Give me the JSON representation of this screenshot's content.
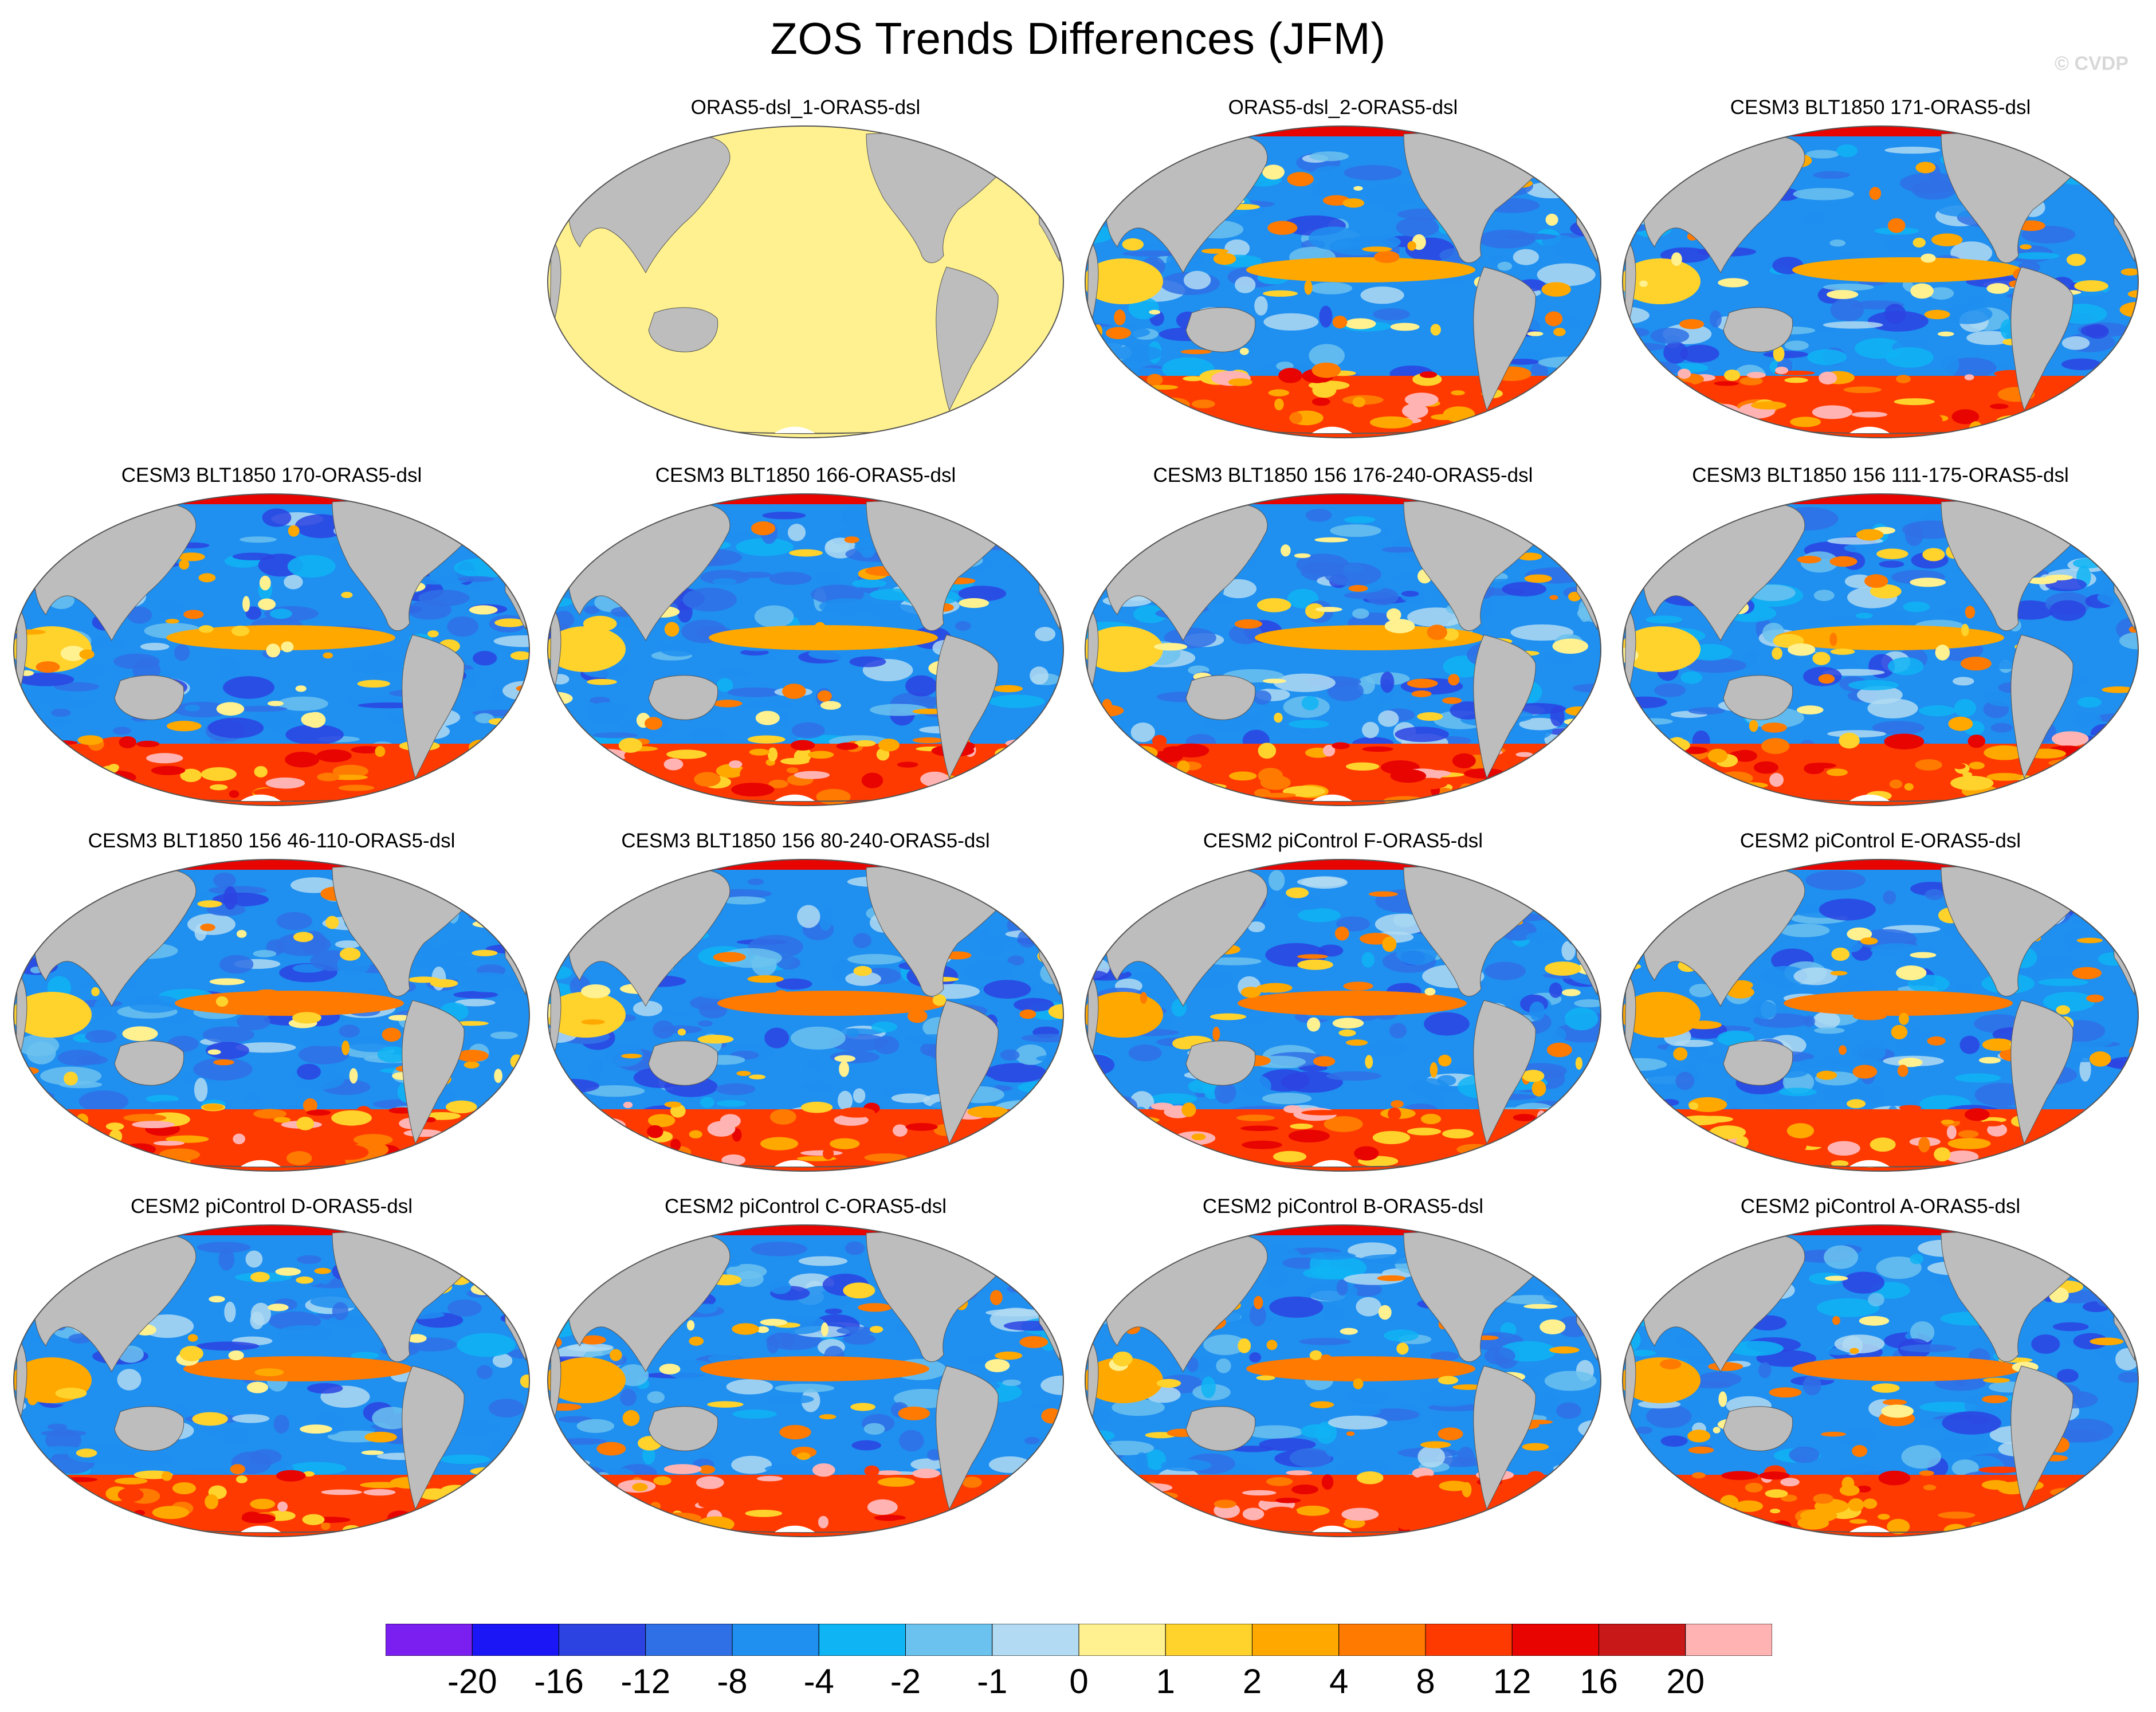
{
  "title": "ZOS Trends Differences (JFM)",
  "watermark": "© CVDP",
  "land_color": "#bdbdbd",
  "panels": [
    {
      "label": "ORAS5-dsl_1-ORAS5-dsl",
      "uniform": true
    },
    {
      "label": "ORAS5-dsl_2-ORAS5-dsl"
    },
    {
      "label": "CESM3 BLT1850 171-ORAS5-dsl"
    },
    {
      "label": "CESM3 BLT1850 170-ORAS5-dsl"
    },
    {
      "label": "CESM3 BLT1850 166-ORAS5-dsl"
    },
    {
      "label": "CESM3 BLT1850 156 176-240-ORAS5-dsl"
    },
    {
      "label": "CESM3 BLT1850 156 111-175-ORAS5-dsl"
    },
    {
      "label": "CESM3 BLT1850 156 46-110-ORAS5-dsl"
    },
    {
      "label": "CESM3 BLT1850 156 80-240-ORAS5-dsl"
    },
    {
      "label": "CESM2 piControl F-ORAS5-dsl"
    },
    {
      "label": "CESM2 piControl E-ORAS5-dsl"
    },
    {
      "label": "CESM2 piControl D-ORAS5-dsl"
    },
    {
      "label": "CESM2 piControl C-ORAS5-dsl"
    },
    {
      "label": "CESM2 piControl B-ORAS5-dsl"
    },
    {
      "label": "CESM2 piControl A-ORAS5-dsl"
    }
  ],
  "colorbar": {
    "colors": [
      "#7a1ff0",
      "#1a16f5",
      "#2c43e2",
      "#3070e6",
      "#1f8ff0",
      "#0fb4f5",
      "#6cc2ef",
      "#b2daf2",
      "#fff18f",
      "#ffd22c",
      "#ffa800",
      "#ff7a00",
      "#ff3a00",
      "#e80400",
      "#c81818",
      "#ffb3b3"
    ],
    "labels": [
      "-20",
      "-16",
      "-12",
      "-8",
      "-4",
      "-2",
      "-1",
      "0",
      "1",
      "2",
      "4",
      "8",
      "12",
      "16",
      "20"
    ]
  }
}
